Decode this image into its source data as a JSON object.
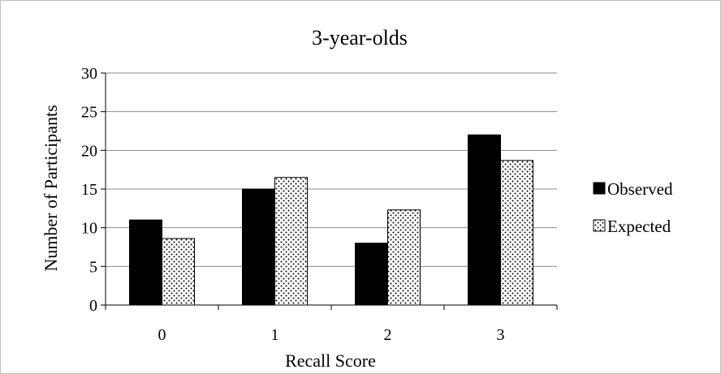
{
  "chart_data": {
    "type": "bar",
    "title": "3-year-olds",
    "xlabel": "Recall Score",
    "ylabel": "Number of Participants",
    "categories": [
      "0",
      "1",
      "2",
      "3"
    ],
    "series": [
      {
        "name": "Observed",
        "values": [
          11,
          15,
          8,
          22
        ],
        "color": "#000000",
        "pattern": "solid"
      },
      {
        "name": "Expected",
        "values": [
          8.6,
          16.5,
          12.3,
          18.7
        ],
        "color": "#ffffff",
        "pattern": "dotted"
      }
    ],
    "ylim": [
      0,
      30
    ],
    "yticks": [
      "0",
      "5",
      "10",
      "15",
      "20",
      "25",
      "30"
    ],
    "grid": true,
    "legend_position": "right"
  }
}
